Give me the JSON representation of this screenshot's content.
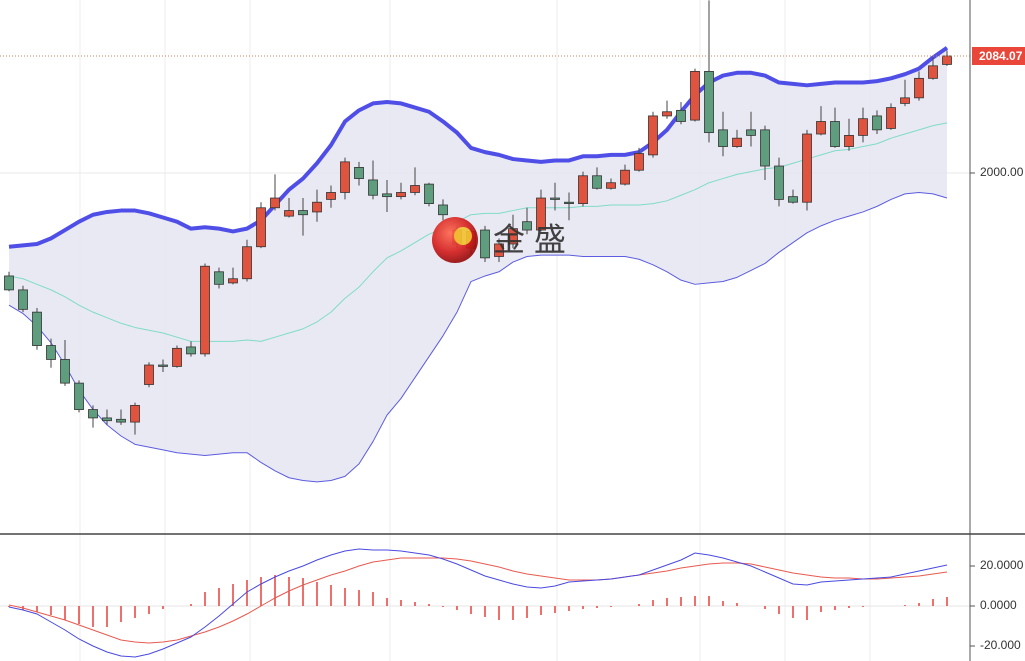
{
  "chart_data": [
    {
      "type": "candlestick",
      "open": [
        1926,
        1916,
        1900,
        1876,
        1866,
        1849,
        1830,
        1824,
        1823,
        1821,
        1848,
        1862,
        1861,
        1875,
        1870,
        1929,
        1921,
        1924,
        1947,
        1975,
        1969,
        1973,
        1972,
        1981,
        1986,
        2004,
        1995,
        1985,
        1983,
        1986,
        1992,
        1977,
        1949,
        1946,
        1959,
        1940,
        1949,
        1965,
        1959,
        1982,
        1979,
        1978,
        1998,
        1989,
        1992,
        2002,
        2013,
        2041,
        2045,
        2038,
        2073,
        2031,
        2019,
        2031,
        2031,
        2005,
        1983,
        1979,
        2028,
        2037,
        2019,
        2027,
        2041,
        2032,
        2050,
        2054,
        2068,
        2078
      ],
      "high": [
        1929,
        1919,
        1903,
        1881,
        1880,
        1851,
        1833,
        1830,
        1830,
        1835,
        1864,
        1866,
        1876,
        1879,
        1935,
        1932,
        1932,
        1952,
        1979,
        1999,
        1982,
        1982,
        1988,
        1991,
        2011,
        2008,
        2009,
        1995,
        1993,
        2004,
        1993,
        1981,
        1962,
        1960,
        1962,
        1953,
        1970,
        1975,
        1988,
        1993,
        1986,
        2001,
        2004,
        1996,
        2006,
        2018,
        2044,
        2052,
        2051,
        2075,
        2124,
        2044,
        2031,
        2044,
        2034,
        2011,
        1988,
        2031,
        2048,
        2047,
        2039,
        2047,
        2045,
        2050,
        2067,
        2073,
        2083,
        2088
      ],
      "low": [
        1915,
        1900,
        1873,
        1860,
        1847,
        1828,
        1817,
        1819,
        1819,
        1812,
        1846,
        1857,
        1860,
        1868,
        1868,
        1917,
        1920,
        1922,
        1946,
        1973,
        1968,
        1955,
        1965,
        1975,
        1981,
        1991,
        1981,
        1972,
        1981,
        1984,
        1976,
        1966,
        1946,
        1942,
        1936,
        1936,
        1946,
        1956,
        1958,
        1973,
        1966,
        1976,
        1988,
        1988,
        1991,
        2001,
        2011,
        2039,
        2035,
        2037,
        2022,
        2012,
        2018,
        2019,
        1995,
        1976,
        1978,
        1973,
        2027,
        2018,
        2016,
        2022,
        2028,
        2031,
        2048,
        2052,
        2067,
        2077
      ],
      "close": [
        1916,
        1902,
        1876,
        1866,
        1849,
        1830,
        1824,
        1822,
        1821,
        1833,
        1862,
        1861,
        1874,
        1870,
        1933,
        1920,
        1924,
        1947,
        1975,
        1982,
        1973,
        1970,
        1979,
        1986,
        2008,
        1996,
        1984,
        1983,
        1986,
        1991,
        1978,
        1970,
        1959,
        1958,
        1939,
        1949,
        1960,
        1959,
        1982,
        1981,
        1978,
        1998,
        1989,
        1993,
        2002,
        2014,
        2041,
        2044,
        2037,
        2073,
        2029,
        2019,
        2025,
        2027,
        2005,
        1981,
        1979,
        2028,
        2037,
        2019,
        2027,
        2039,
        2031,
        2047,
        2054,
        2068,
        2077,
        2084.07
      ],
      "up_color": "#e0533f",
      "down_color": "#5e9e7e",
      "upper": {
        "color": "#4f4fe8",
        "values": [
          1947,
          1948,
          1949,
          1953,
          1959,
          1965,
          1970,
          1972,
          1973,
          1973,
          1971,
          1968,
          1965,
          1960,
          1961,
          1960,
          1958,
          1960,
          1966,
          1977,
          1988,
          1996,
          2007,
          2020,
          2037,
          2045,
          2050,
          2051,
          2050,
          2047,
          2044,
          2037,
          2029,
          2018,
          2015,
          2013,
          2010,
          2009,
          2008,
          2009,
          2009,
          2012,
          2012,
          2013,
          2013,
          2015,
          2022,
          2031,
          2044,
          2056,
          2065,
          2070,
          2072,
          2072,
          2070,
          2065,
          2064,
          2063,
          2064,
          2065,
          2065,
          2065,
          2066,
          2068,
          2071,
          2075,
          2083,
          2090
        ]
      },
      "middle": {
        "color": "#7fdcc6",
        "values": [
          1926,
          1924,
          1920,
          1916,
          1911,
          1905,
          1900,
          1896,
          1892,
          1889,
          1887,
          1885,
          1882,
          1879,
          1879,
          1879,
          1879,
          1880,
          1879,
          1882,
          1885,
          1888,
          1893,
          1900,
          1910,
          1918,
          1929,
          1939,
          1944,
          1950,
          1956,
          1960,
          1965,
          1970,
          1971,
          1971,
          1973,
          1975,
          1975,
          1975,
          1975,
          1976,
          1976,
          1977,
          1977,
          1977,
          1978,
          1980,
          1984,
          1988,
          1993,
          1996,
          1999,
          2001,
          2003,
          2004,
          2007,
          2010,
          2013,
          2016,
          2017,
          2019,
          2021,
          2025,
          2028,
          2031,
          2034,
          2036
        ]
      },
      "lower": {
        "color": "#5c5ce0",
        "values": [
          1905,
          1899,
          1890,
          1878,
          1862,
          1844,
          1830,
          1819,
          1811,
          1805,
          1803,
          1801,
          1799,
          1798,
          1797,
          1798,
          1799,
          1799,
          1792,
          1786,
          1781,
          1779,
          1778,
          1779,
          1782,
          1791,
          1807,
          1826,
          1838,
          1853,
          1868,
          1883,
          1900,
          1922,
          1926,
          1929,
          1936,
          1940,
          1941,
          1941,
          1941,
          1940,
          1940,
          1940,
          1940,
          1938,
          1934,
          1929,
          1923,
          1920,
          1921,
          1922,
          1925,
          1930,
          1935,
          1943,
          1950,
          1957,
          1962,
          1966,
          1969,
          1972,
          1976,
          1981,
          1985,
          1986,
          1985,
          1982
        ]
      },
      "band_fill": "#e4e4f1",
      "ylim": [
        1741.3,
        2124.3
      ],
      "yticks": [
        {
          "value": 2000,
          "label": "2000.00"
        }
      ],
      "last_price": {
        "value": 2084.07,
        "label": "2084.07",
        "color": "#e8473a"
      },
      "watermark": "金 盛"
    },
    {
      "type": "macd",
      "histogram": {
        "color": "#e8413a",
        "values": [
          -0.5,
          -2,
          -3,
          -4.5,
          -7,
          -9,
          -10.5,
          -10.5,
          -8,
          -6,
          -4,
          -1.5,
          0,
          1,
          7,
          9,
          11,
          13,
          14.5,
          15.5,
          14.5,
          14,
          12,
          10.5,
          9,
          8,
          7,
          4,
          3,
          2,
          1,
          -0.5,
          -2,
          -4,
          -5.5,
          -7,
          -7,
          -6,
          -4.5,
          -3.5,
          -2.5,
          -1.5,
          -1,
          -0.5,
          0,
          1,
          3,
          4,
          4.5,
          5,
          5,
          2.5,
          1.5,
          0,
          -1.5,
          -4,
          -6,
          -7,
          -3,
          -2,
          -1,
          -0.5,
          0,
          0,
          0.5,
          1.5,
          3.5,
          4.5
        ]
      },
      "dif": {
        "color": "#4a4ae0",
        "values": [
          -0.5,
          -2,
          -4,
          -8,
          -12,
          -16.5,
          -20,
          -23,
          -25,
          -25.5,
          -24,
          -21.5,
          -18.5,
          -15.5,
          -10.5,
          -5,
          1,
          7,
          11,
          14.5,
          17.5,
          20,
          23,
          25.5,
          27.5,
          28.5,
          28,
          28,
          27.5,
          26.5,
          25.5,
          23.5,
          21,
          18,
          15,
          13,
          11,
          9.5,
          9,
          10,
          12,
          12.5,
          13,
          13.5,
          14.5,
          15.5,
          18,
          20.5,
          23,
          26.5,
          25.5,
          24,
          22,
          20,
          17,
          14,
          11,
          10.5,
          12,
          12.5,
          13,
          13.5,
          14,
          14.5,
          16,
          17.5,
          19,
          20.5
        ]
      },
      "dea": {
        "color": "#e85a50",
        "values": [
          0.5,
          -1,
          -3,
          -5,
          -7,
          -9.5,
          -12,
          -14.5,
          -17,
          -18,
          -18.5,
          -18,
          -17,
          -15,
          -13,
          -10.5,
          -7.5,
          -4,
          0,
          4,
          7.5,
          10.5,
          13,
          15.5,
          17.5,
          20,
          22,
          23,
          24,
          24,
          24,
          24,
          23.5,
          22.5,
          21,
          19.5,
          17.5,
          16,
          15,
          14,
          13,
          13,
          13,
          13.5,
          14.5,
          15.5,
          16.5,
          17.5,
          19,
          20,
          21,
          21.5,
          21.5,
          21,
          19.5,
          18,
          16.5,
          15.5,
          14.5,
          14,
          14,
          13.5,
          13.5,
          14,
          14.5,
          15,
          16,
          17
        ]
      },
      "ylim": [
        -27.5,
        35.5
      ],
      "yticks": [
        {
          "value": 20,
          "label": "20.0000"
        },
        {
          "value": 0,
          "label": "0.0000"
        },
        {
          "value": -20,
          "label": "-20.000"
        }
      ]
    }
  ]
}
